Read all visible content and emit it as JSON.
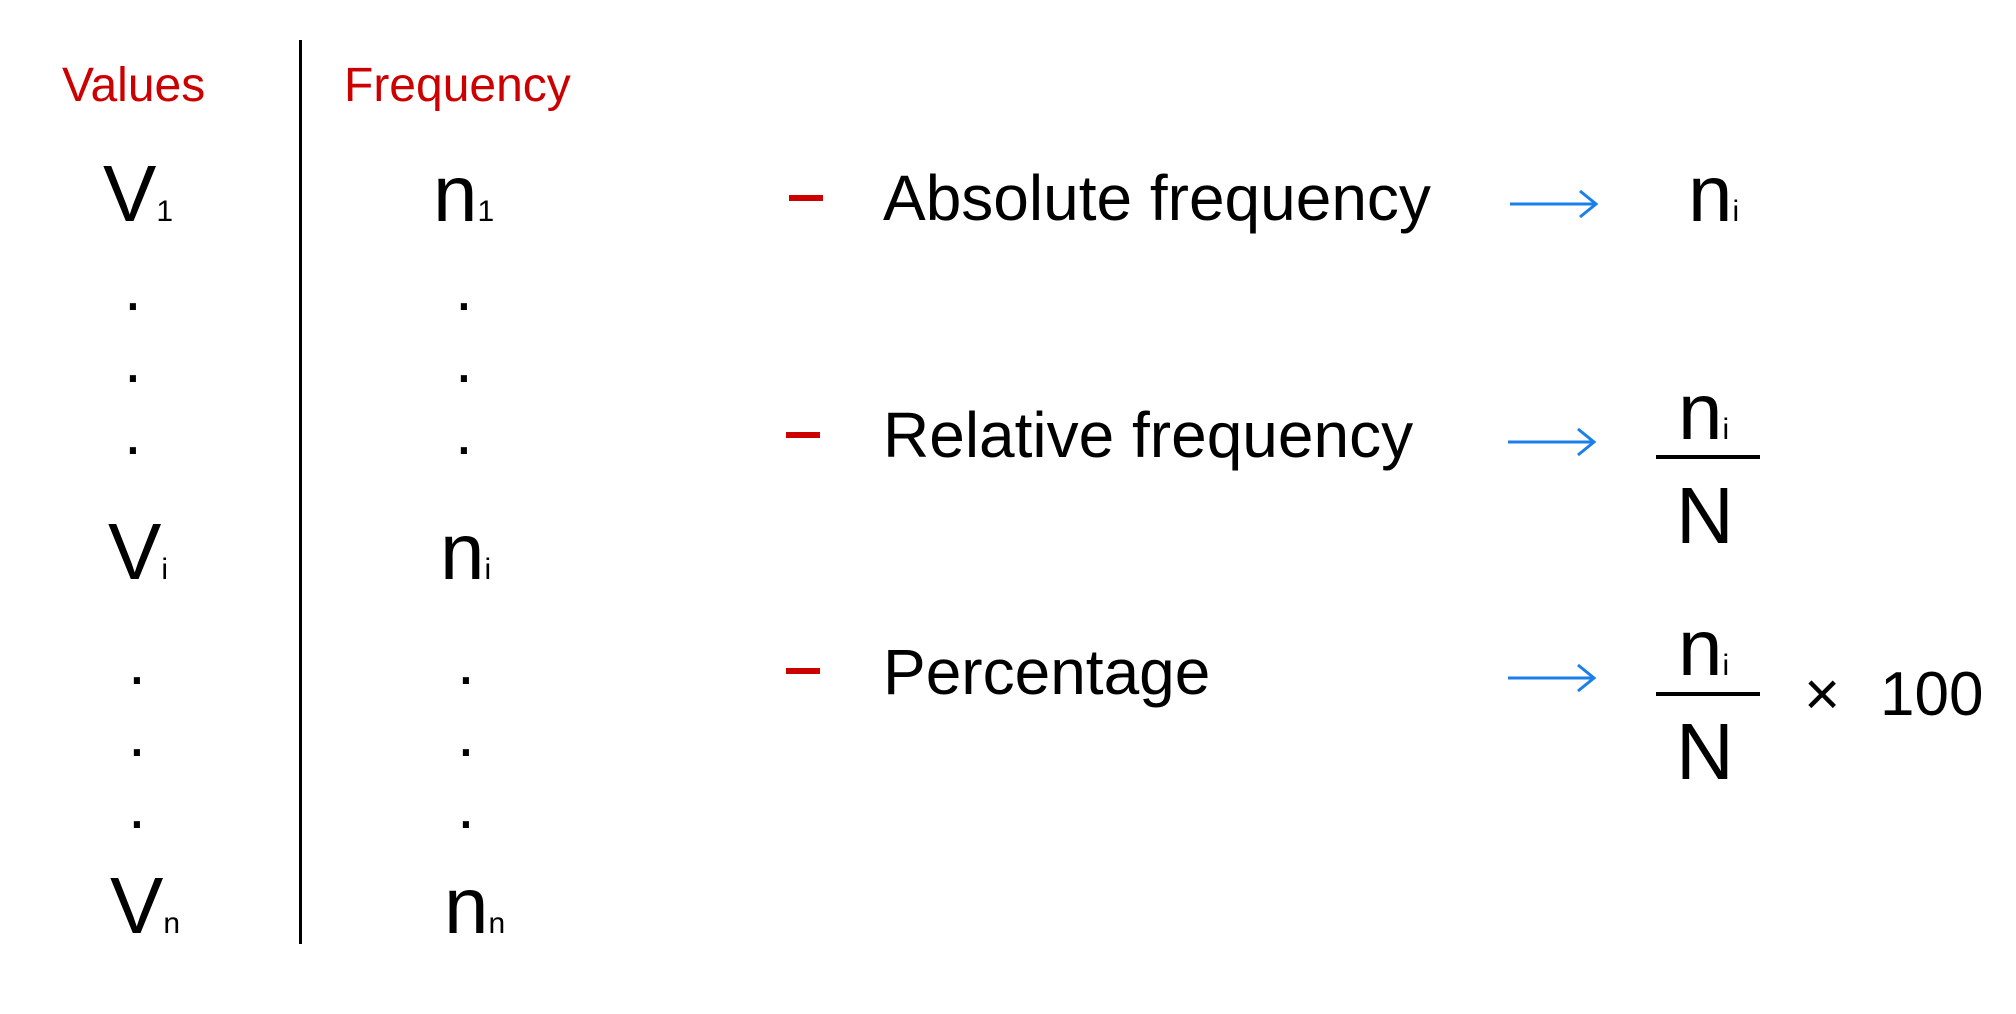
{
  "colors": {
    "accent_red": "#cc0000",
    "arrow_blue": "#1a7fe8",
    "text": "#000000"
  },
  "table": {
    "values_header": "Values",
    "frequency_header": "Frequency",
    "rows": [
      {
        "value_base": "V",
        "value_sub": "1",
        "freq_base": "n",
        "freq_sub": "1"
      },
      {
        "value_base": "V",
        "value_sub": "i",
        "freq_base": "n",
        "freq_sub": "i"
      },
      {
        "value_base": "V",
        "value_sub": "n",
        "freq_base": "n",
        "freq_sub": "n"
      }
    ],
    "ellipsis_dot": "."
  },
  "measures": [
    {
      "label": "Absolute frequency",
      "formula_base": "n",
      "formula_sub": "i"
    },
    {
      "label": "Relative frequency",
      "numerator_base": "n",
      "numerator_sub": "i",
      "denominator": "N"
    },
    {
      "label": "Percentage",
      "numerator_base": "n",
      "numerator_sub": "i",
      "denominator": "N",
      "times_symbol": "×",
      "multiplier": "100"
    }
  ],
  "icons": {
    "dash": "red-dash-bullet",
    "arrow": "right-arrow"
  }
}
